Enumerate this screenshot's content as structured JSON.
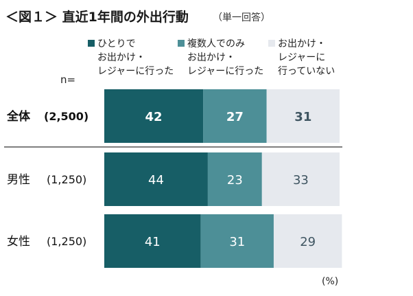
{
  "chart_data": {
    "type": "bar",
    "stacked": true,
    "orientation": "horizontal",
    "title": "＜図１＞ 直近1年間の外出行動",
    "subtitle": "（単一回答）",
    "n_label": "n=",
    "unit_label": "(%)",
    "categories": [
      {
        "name": "全体",
        "n": "(2,500)",
        "bold": true
      },
      {
        "name": "男性",
        "n": "(1,250)",
        "bold": false
      },
      {
        "name": "女性",
        "n": "(1,250)",
        "bold": false
      }
    ],
    "series": [
      {
        "name": "ひとりで\nお出かけ・\nレジャーに行った",
        "color": "#175e66",
        "label_color": "#ffffff",
        "values": [
          42,
          44,
          41
        ]
      },
      {
        "name": "複数人でのみ\nお出かけ・\nレジャーに行った",
        "color": "#4d8f97",
        "label_color": "#ffffff",
        "values": [
          27,
          23,
          31
        ]
      },
      {
        "name": "お出かけ・\nレジャーに\n行っていない",
        "color": "#e6e9ee",
        "label_color": "#3f5561",
        "values": [
          31,
          33,
          29
        ]
      }
    ],
    "xlim": [
      0,
      100
    ],
    "grid": false,
    "legend_position": "top"
  }
}
